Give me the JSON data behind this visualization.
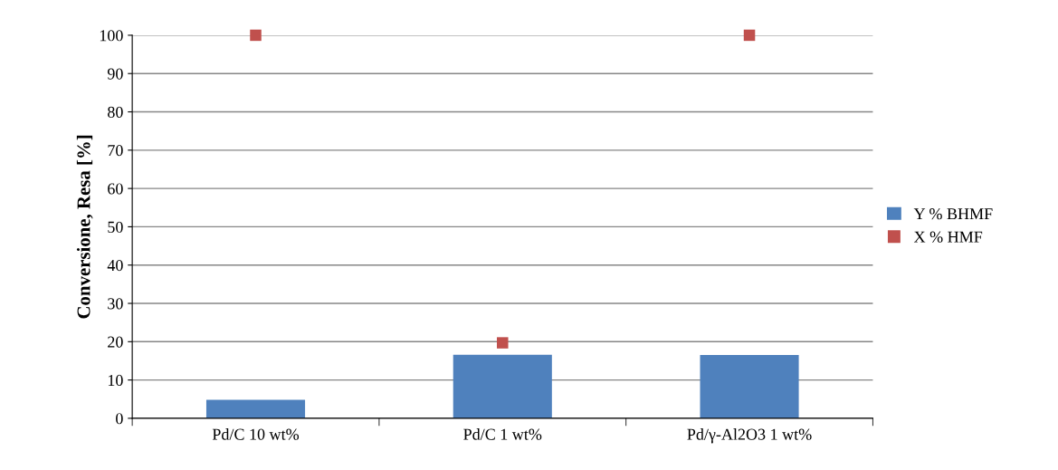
{
  "chart_data": {
    "type": "bar",
    "ylabel": "Conversione, Resa [%]",
    "categories": [
      "Pd/C 10 wt%",
      "Pd/C 1 wt%",
      "Pd/γ-Al2O3 1 wt%"
    ],
    "series": [
      {
        "name": "Y % BHMF",
        "color": "#4f81bd",
        "values": [
          4.8,
          16.6,
          16.5
        ]
      },
      {
        "name": "X % HMF",
        "type": "scatter",
        "marker": "square",
        "color": "#c0504d",
        "values": [
          100,
          19.7,
          100
        ]
      }
    ],
    "ylim": [
      0,
      100
    ],
    "yticks": [
      0,
      10,
      20,
      30,
      40,
      50,
      60,
      70,
      80,
      90,
      100
    ],
    "grid": "y",
    "legend": "right"
  }
}
